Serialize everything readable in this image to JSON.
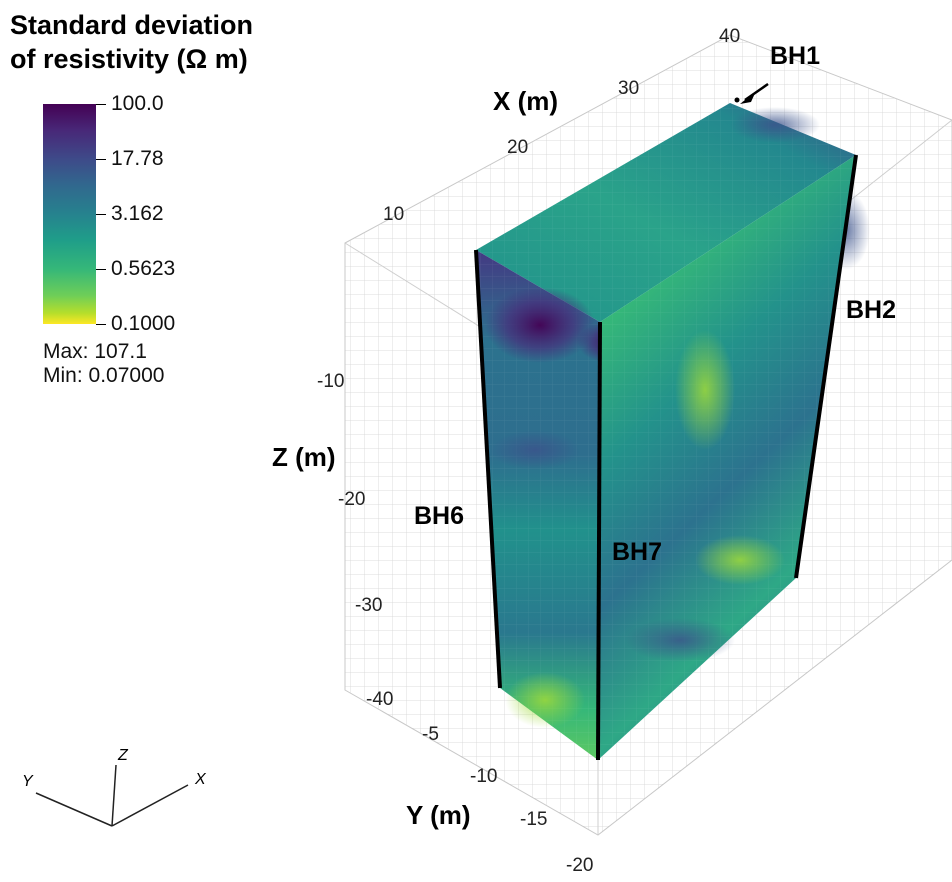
{
  "legend": {
    "title_line1": "Standard deviation",
    "title_line2": "of resistivity (Ω m)",
    "ticks": [
      "100.0",
      "17.78",
      "3.162",
      "0.5623",
      "0.1000"
    ],
    "max_label": "Max:",
    "max_value": "107.1",
    "min_label": "Min:",
    "min_value": "0.07000",
    "colormap": "viridis",
    "colors": {
      "top": "#440154",
      "upper": "#3e4a89",
      "middle": "#26828e",
      "lower": "#35b779",
      "bottom": "#fde725"
    }
  },
  "axes": {
    "x": {
      "label": "X (m)",
      "ticks": [
        "10",
        "20",
        "30",
        "40"
      ]
    },
    "y": {
      "label": "Y (m)",
      "ticks": [
        "-5",
        "-10",
        "-15",
        "-20"
      ]
    },
    "z": {
      "label": "Z (m)",
      "ticks": [
        "-10",
        "-20",
        "-30",
        "-40"
      ]
    }
  },
  "boreholes": [
    "BH1",
    "BH2",
    "BH6",
    "BH7"
  ],
  "orientation_triad": {
    "x": "X",
    "y": "Y",
    "z": "Z"
  }
}
